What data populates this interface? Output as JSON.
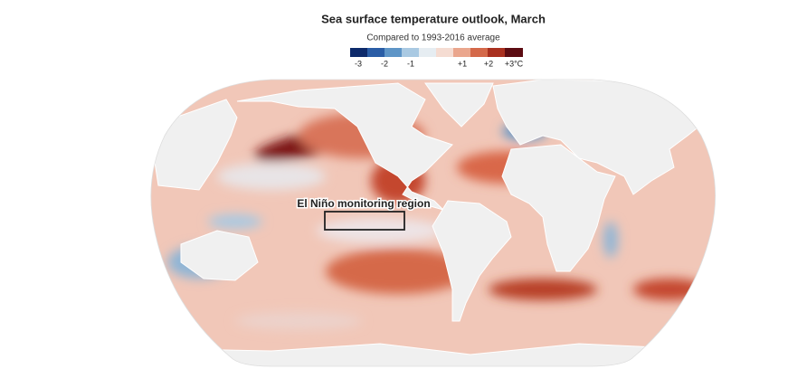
{
  "title": "Sea surface temperature outlook, March",
  "subtitle": "Compared to 1993-2016 average",
  "legend": {
    "labels": [
      "-3",
      "-2",
      "-1",
      "+1",
      "+2",
      "+3°C"
    ]
  },
  "annotation": "El Niño monitoring region"
}
